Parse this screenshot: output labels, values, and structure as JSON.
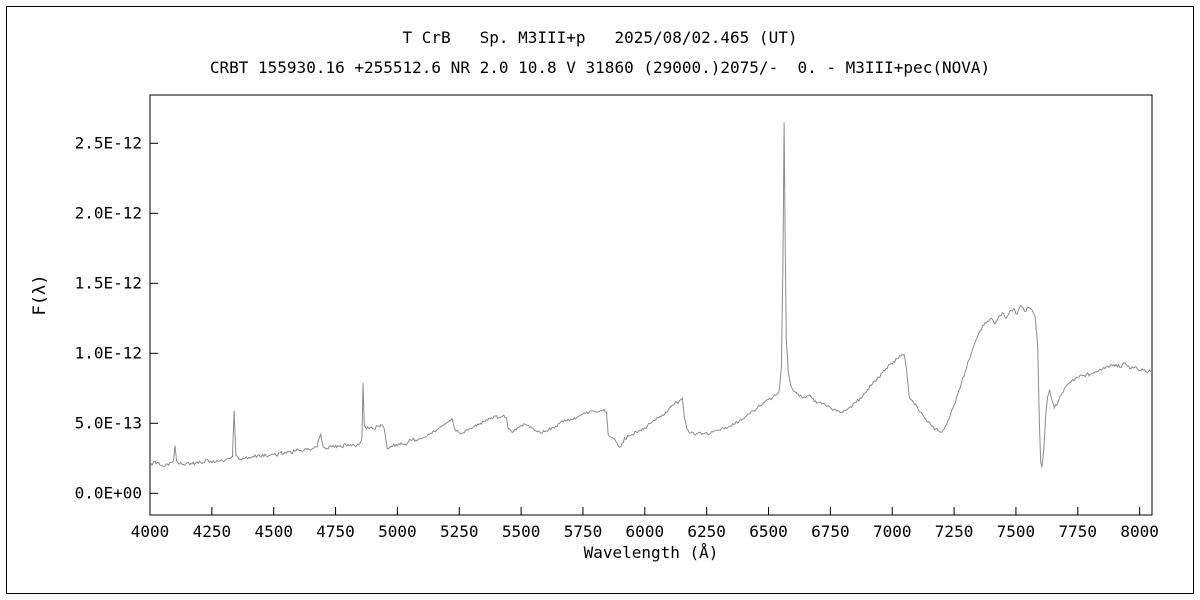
{
  "titles": {
    "line1": "T CrB   Sp. M3III+p   2025/08/02.465 (UT)",
    "line2": "CRBT 155930.16 +255512.6 NR 2.0 10.8 V 31860 (29000.)2075/-  0. - M3III+pec(NOVA)"
  },
  "chart_data": {
    "type": "line",
    "title": "T CrB   Sp. M3III+p   2025/08/02.465 (UT)",
    "subtitle": "CRBT 155930.16 +255512.6 NR 2.0 10.8 V 31860 (29000.)2075/-  0. - M3III+pec(NOVA)",
    "xlabel": "Wavelength (Å)",
    "ylabel": "F(λ)",
    "grid": false,
    "legend": "none",
    "line_color": "#8c8c8c",
    "axis_color": "#000000",
    "xlim": [
      4000,
      8050
    ],
    "ylim": [
      -1.55e-13,
      2.845e-12
    ],
    "x_ticks": [
      4000,
      4250,
      4500,
      4750,
      5000,
      5250,
      5500,
      5750,
      6000,
      6250,
      6500,
      6750,
      7000,
      7250,
      7500,
      7750,
      8000
    ],
    "y_ticks": [
      {
        "value": 0,
        "label": "0.0E+00"
      },
      {
        "value": 5e-13,
        "label": "5.0E-13"
      },
      {
        "value": 1e-12,
        "label": "1.0E-12"
      },
      {
        "value": 1.5e-12,
        "label": "1.5E-12"
      },
      {
        "value": 2e-12,
        "label": "2.0E-12"
      },
      {
        "value": 2.5e-12,
        "label": "2.5E-12"
      }
    ],
    "flux_scale": 1e-13,
    "noise_amplitude": 0.13,
    "noise_step": 5,
    "features": [
      "Hδ 4101 emission",
      "Hγ 4340 emission",
      "He II 4686 emission",
      "Hβ 4861 emission",
      "TiO band heads",
      "Hα 6563 strong emission ~2.65E-12",
      "O2 telluric A-band absorption ~7600"
    ],
    "points": [
      [
        4000,
        2.2
      ],
      [
        4008,
        2.0
      ],
      [
        4016,
        2.3
      ],
      [
        4025,
        2.1
      ],
      [
        4035,
        2.2
      ],
      [
        4045,
        2.0
      ],
      [
        4055,
        1.9
      ],
      [
        4065,
        2.1
      ],
      [
        4075,
        2.0
      ],
      [
        4085,
        2.2
      ],
      [
        4095,
        2.3
      ],
      [
        4101,
        3.4
      ],
      [
        4107,
        2.3
      ],
      [
        4115,
        2.1
      ],
      [
        4125,
        2.2
      ],
      [
        4140,
        2.0
      ],
      [
        4155,
        2.2
      ],
      [
        4170,
        2.1
      ],
      [
        4185,
        2.2
      ],
      [
        4200,
        2.3
      ],
      [
        4215,
        2.2
      ],
      [
        4230,
        2.4
      ],
      [
        4245,
        2.3
      ],
      [
        4260,
        2.2
      ],
      [
        4275,
        2.3
      ],
      [
        4290,
        2.4
      ],
      [
        4305,
        2.4
      ],
      [
        4320,
        2.5
      ],
      [
        4333,
        2.6
      ],
      [
        4340,
        5.9
      ],
      [
        4347,
        2.7
      ],
      [
        4360,
        2.4
      ],
      [
        4375,
        2.5
      ],
      [
        4390,
        2.6
      ],
      [
        4405,
        2.5
      ],
      [
        4420,
        2.6
      ],
      [
        4435,
        2.7
      ],
      [
        4450,
        2.6
      ],
      [
        4465,
        2.8
      ],
      [
        4480,
        2.7
      ],
      [
        4495,
        2.8
      ],
      [
        4510,
        2.7
      ],
      [
        4525,
        2.9
      ],
      [
        4540,
        2.8
      ],
      [
        4555,
        3.0
      ],
      [
        4570,
        2.9
      ],
      [
        4585,
        3.0
      ],
      [
        4600,
        3.1
      ],
      [
        4615,
        3.0
      ],
      [
        4630,
        3.2
      ],
      [
        4645,
        3.1
      ],
      [
        4660,
        3.2
      ],
      [
        4675,
        3.3
      ],
      [
        4690,
        4.2
      ],
      [
        4700,
        3.3
      ],
      [
        4715,
        3.2
      ],
      [
        4730,
        3.4
      ],
      [
        4745,
        3.3
      ],
      [
        4760,
        3.4
      ],
      [
        4775,
        3.3
      ],
      [
        4790,
        3.5
      ],
      [
        4805,
        3.4
      ],
      [
        4820,
        3.5
      ],
      [
        4835,
        3.4
      ],
      [
        4850,
        3.6
      ],
      [
        4857,
        4.0
      ],
      [
        4861,
        7.9
      ],
      [
        4866,
        4.8
      ],
      [
        4875,
        4.6
      ],
      [
        4890,
        4.7
      ],
      [
        4905,
        4.6
      ],
      [
        4920,
        4.8
      ],
      [
        4933,
        4.9
      ],
      [
        4945,
        4.7
      ],
      [
        4952,
        4.0
      ],
      [
        4958,
        3.2
      ],
      [
        4970,
        3.3
      ],
      [
        4985,
        3.5
      ],
      [
        5000,
        3.4
      ],
      [
        5015,
        3.6
      ],
      [
        5030,
        3.5
      ],
      [
        5045,
        3.7
      ],
      [
        5060,
        3.8
      ],
      [
        5075,
        3.8
      ],
      [
        5090,
        3.9
      ],
      [
        5105,
        4.0
      ],
      [
        5120,
        4.1
      ],
      [
        5135,
        4.3
      ],
      [
        5150,
        4.4
      ],
      [
        5165,
        4.6
      ],
      [
        5180,
        4.8
      ],
      [
        5195,
        5.0
      ],
      [
        5210,
        5.2
      ],
      [
        5222,
        5.3
      ],
      [
        5232,
        4.6
      ],
      [
        5245,
        4.4
      ],
      [
        5260,
        4.3
      ],
      [
        5275,
        4.5
      ],
      [
        5290,
        4.6
      ],
      [
        5305,
        4.7
      ],
      [
        5320,
        4.8
      ],
      [
        5335,
        5.0
      ],
      [
        5350,
        5.1
      ],
      [
        5365,
        5.2
      ],
      [
        5380,
        5.4
      ],
      [
        5395,
        5.5
      ],
      [
        5410,
        5.4
      ],
      [
        5425,
        5.5
      ],
      [
        5440,
        5.4
      ],
      [
        5448,
        4.6
      ],
      [
        5460,
        4.4
      ],
      [
        5475,
        4.6
      ],
      [
        5490,
        4.7
      ],
      [
        5505,
        4.8
      ],
      [
        5520,
        4.9
      ],
      [
        5535,
        4.7
      ],
      [
        5550,
        4.6
      ],
      [
        5565,
        4.4
      ],
      [
        5580,
        4.3
      ],
      [
        5595,
        4.4
      ],
      [
        5610,
        4.5
      ],
      [
        5625,
        4.7
      ],
      [
        5640,
        4.8
      ],
      [
        5655,
        5.0
      ],
      [
        5670,
        5.1
      ],
      [
        5685,
        5.2
      ],
      [
        5700,
        5.3
      ],
      [
        5715,
        5.4
      ],
      [
        5730,
        5.5
      ],
      [
        5745,
        5.6
      ],
      [
        5760,
        5.7
      ],
      [
        5775,
        5.8
      ],
      [
        5790,
        5.9
      ],
      [
        5805,
        5.8
      ],
      [
        5820,
        5.9
      ],
      [
        5835,
        6.0
      ],
      [
        5845,
        5.8
      ],
      [
        5852,
        4.2
      ],
      [
        5862,
        4.0
      ],
      [
        5875,
        3.9
      ],
      [
        5888,
        3.6
      ],
      [
        5898,
        3.3
      ],
      [
        5908,
        3.6
      ],
      [
        5920,
        3.9
      ],
      [
        5935,
        4.1
      ],
      [
        5950,
        4.2
      ],
      [
        5965,
        4.4
      ],
      [
        5980,
        4.5
      ],
      [
        5995,
        4.6
      ],
      [
        6010,
        4.8
      ],
      [
        6025,
        5.0
      ],
      [
        6040,
        5.2
      ],
      [
        6055,
        5.4
      ],
      [
        6070,
        5.6
      ],
      [
        6085,
        5.8
      ],
      [
        6100,
        6.1
      ],
      [
        6115,
        6.3
      ],
      [
        6130,
        6.5
      ],
      [
        6145,
        6.7
      ],
      [
        6152,
        6.8
      ],
      [
        6160,
        5.4
      ],
      [
        6170,
        4.6
      ],
      [
        6185,
        4.3
      ],
      [
        6200,
        4.2
      ],
      [
        6215,
        4.3
      ],
      [
        6230,
        4.2
      ],
      [
        6245,
        4.3
      ],
      [
        6260,
        4.2
      ],
      [
        6275,
        4.4
      ],
      [
        6290,
        4.5
      ],
      [
        6305,
        4.5
      ],
      [
        6320,
        4.6
      ],
      [
        6335,
        4.7
      ],
      [
        6350,
        4.8
      ],
      [
        6365,
        5.0
      ],
      [
        6380,
        5.1
      ],
      [
        6395,
        5.3
      ],
      [
        6410,
        5.5
      ],
      [
        6425,
        5.7
      ],
      [
        6440,
        5.9
      ],
      [
        6455,
        6.1
      ],
      [
        6470,
        6.3
      ],
      [
        6485,
        6.5
      ],
      [
        6500,
        6.7
      ],
      [
        6515,
        6.8
      ],
      [
        6530,
        7.0
      ],
      [
        6542,
        7.2
      ],
      [
        6552,
        9.0
      ],
      [
        6558,
        16.0
      ],
      [
        6563,
        26.5
      ],
      [
        6567,
        18.5
      ],
      [
        6572,
        11.0
      ],
      [
        6580,
        8.6
      ],
      [
        6590,
        7.7
      ],
      [
        6602,
        7.3
      ],
      [
        6615,
        7.1
      ],
      [
        6630,
        7.0
      ],
      [
        6645,
        6.9
      ],
      [
        6660,
        7.0
      ],
      [
        6675,
        6.8
      ],
      [
        6690,
        6.6
      ],
      [
        6705,
        6.5
      ],
      [
        6720,
        6.4
      ],
      [
        6735,
        6.2
      ],
      [
        6750,
        6.1
      ],
      [
        6765,
        6.0
      ],
      [
        6780,
        5.9
      ],
      [
        6795,
        5.8
      ],
      [
        6810,
        5.9
      ],
      [
        6825,
        6.1
      ],
      [
        6840,
        6.3
      ],
      [
        6855,
        6.5
      ],
      [
        6870,
        6.8
      ],
      [
        6885,
        7.1
      ],
      [
        6900,
        7.4
      ],
      [
        6915,
        7.7
      ],
      [
        6930,
        8.0
      ],
      [
        6945,
        8.3
      ],
      [
        6960,
        8.6
      ],
      [
        6975,
        8.9
      ],
      [
        6990,
        9.2
      ],
      [
        7005,
        9.4
      ],
      [
        7020,
        9.6
      ],
      [
        7035,
        9.8
      ],
      [
        7048,
        9.9
      ],
      [
        7058,
        8.8
      ],
      [
        7070,
        6.8
      ],
      [
        7085,
        6.5
      ],
      [
        7100,
        6.2
      ],
      [
        7115,
        5.8
      ],
      [
        7130,
        5.4
      ],
      [
        7145,
        5.1
      ],
      [
        7160,
        4.8
      ],
      [
        7175,
        4.6
      ],
      [
        7190,
        4.4
      ],
      [
        7205,
        4.5
      ],
      [
        7220,
        4.9
      ],
      [
        7235,
        5.6
      ],
      [
        7250,
        6.3
      ],
      [
        7265,
        7.1
      ],
      [
        7280,
        7.9
      ],
      [
        7295,
        8.7
      ],
      [
        7310,
        9.5
      ],
      [
        7325,
        10.3
      ],
      [
        7340,
        11.0
      ],
      [
        7355,
        11.6
      ],
      [
        7370,
        12.0
      ],
      [
        7385,
        12.3
      ],
      [
        7400,
        12.5
      ],
      [
        7415,
        12.1
      ],
      [
        7430,
        12.6
      ],
      [
        7445,
        12.9
      ],
      [
        7460,
        12.5
      ],
      [
        7475,
        13.0
      ],
      [
        7490,
        13.2
      ],
      [
        7505,
        12.8
      ],
      [
        7520,
        13.4
      ],
      [
        7535,
        13.0
      ],
      [
        7550,
        13.3
      ],
      [
        7565,
        13.1
      ],
      [
        7578,
        12.6
      ],
      [
        7588,
        10.5
      ],
      [
        7595,
        5.0
      ],
      [
        7600,
        2.2
      ],
      [
        7606,
        2.0
      ],
      [
        7612,
        3.0
      ],
      [
        7620,
        5.5
      ],
      [
        7628,
        6.9
      ],
      [
        7636,
        7.4
      ],
      [
        7645,
        6.7
      ],
      [
        7655,
        6.1
      ],
      [
        7668,
        6.4
      ],
      [
        7682,
        7.0
      ],
      [
        7696,
        7.5
      ],
      [
        7710,
        7.8
      ],
      [
        7725,
        8.0
      ],
      [
        7740,
        8.2
      ],
      [
        7755,
        8.3
      ],
      [
        7770,
        8.4
      ],
      [
        7785,
        8.5
      ],
      [
        7800,
        8.5
      ],
      [
        7815,
        8.6
      ],
      [
        7830,
        8.7
      ],
      [
        7845,
        8.8
      ],
      [
        7860,
        8.9
      ],
      [
        7875,
        9.0
      ],
      [
        7890,
        9.1
      ],
      [
        7905,
        9.2
      ],
      [
        7920,
        9.0
      ],
      [
        7935,
        9.3
      ],
      [
        7950,
        9.1
      ],
      [
        7965,
        8.9
      ],
      [
        7980,
        9.0
      ],
      [
        7995,
        8.8
      ],
      [
        8010,
        8.9
      ],
      [
        8025,
        8.7
      ],
      [
        8040,
        8.8
      ],
      [
        8050,
        8.7
      ]
    ]
  }
}
